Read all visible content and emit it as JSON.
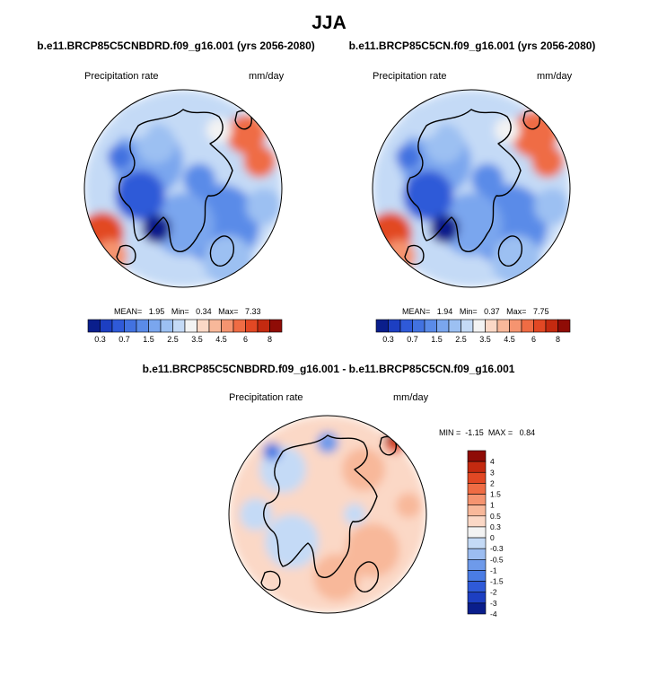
{
  "title": "JJA",
  "colors": {
    "sequential": [
      "#0a1e8c",
      "#1d3fc2",
      "#2f5ad8",
      "#4272e0",
      "#5a8be8",
      "#7aa6ee",
      "#9cc0f2",
      "#c4daf6",
      "#f3f3f3",
      "#fbd8c6",
      "#f8b89a",
      "#f59470",
      "#ef6c44",
      "#e24824",
      "#c42a10",
      "#8f0c06"
    ],
    "diverging": [
      "#0a1e8c",
      "#1d3fc2",
      "#2f5ad8",
      "#4a7ce4",
      "#6e9aea",
      "#9cbdf1",
      "#c4daf6",
      "#f3f3f3",
      "#fbd8c6",
      "#f8b89a",
      "#f59470",
      "#ef6c44",
      "#e24824",
      "#c42a10",
      "#8f0c06"
    ],
    "coast": "#000000"
  },
  "chart_data": [
    {
      "type": "heatmap",
      "projection": "north-polar-stereographic",
      "title": "b.e11.BRCP85C5CNBDRD.f09_g16.001 (yrs 2056-2080)",
      "field_label": "Precipitation rate",
      "units": "mm/day",
      "stats": {
        "mean_label": "MEAN=",
        "mean": "1.95",
        "min_label": "Min=",
        "min": "0.34",
        "max_label": "Max=",
        "max": "7.33"
      },
      "colorbar": {
        "orientation": "horizontal",
        "levels": [
          0.3,
          0.5,
          0.7,
          1,
          1.5,
          2,
          2.5,
          3,
          3.5,
          4,
          4.5,
          5,
          6,
          7,
          8
        ],
        "tick_labels": [
          "0.3",
          "0.7",
          "1.5",
          "2.5",
          "3.5",
          "4.5",
          "6",
          "8"
        ]
      },
      "levels_range": [
        0.34,
        7.33
      ]
    },
    {
      "type": "heatmap",
      "projection": "north-polar-stereographic",
      "title": "b.e11.BRCP85C5CN.f09_g16.001 (yrs 2056-2080)",
      "field_label": "Precipitation rate",
      "units": "mm/day",
      "stats": {
        "mean_label": "MEAN=",
        "mean": "1.94",
        "min_label": "Min=",
        "min": "0.37",
        "max_label": "Max=",
        "max": "7.75"
      },
      "colorbar": {
        "orientation": "horizontal",
        "levels": [
          0.3,
          0.5,
          0.7,
          1,
          1.5,
          2,
          2.5,
          3,
          3.5,
          4,
          4.5,
          5,
          6,
          7,
          8
        ],
        "tick_labels": [
          "0.3",
          "0.7",
          "1.5",
          "2.5",
          "3.5",
          "4.5",
          "6",
          "8"
        ]
      },
      "levels_range": [
        0.37,
        7.75
      ]
    },
    {
      "type": "heatmap",
      "projection": "north-polar-stereographic",
      "title": "b.e11.BRCP85C5CNBDRD.f09_g16.001 - b.e11.BRCP85C5CN.f09_g16.001",
      "field_label": "Precipitation rate",
      "units": "mm/day",
      "stats": {
        "min_label": "MIN =",
        "min": "-1.15",
        "max_label": "MAX =",
        "max": "0.84"
      },
      "colorbar": {
        "orientation": "vertical",
        "levels": [
          -4,
          -3,
          -2,
          -1.5,
          -1,
          -0.5,
          -0.3,
          0,
          0.3,
          0.5,
          1,
          1.5,
          2,
          3,
          4
        ],
        "tick_labels": [
          "4",
          "3",
          "2",
          "1.5",
          "1",
          "0.5",
          "0.3",
          "0",
          "-0.3",
          "-0.5",
          "-1",
          "-1.5",
          "-2",
          "-3",
          "-4"
        ]
      },
      "levels_range": [
        -1.15,
        0.84
      ]
    }
  ]
}
